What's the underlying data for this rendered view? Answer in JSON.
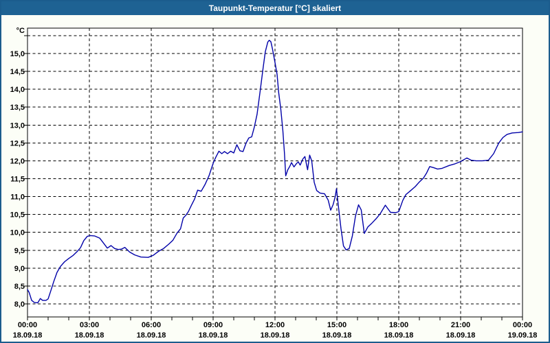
{
  "window": {
    "title": "Taupunkt-Temperatur [°C] skaliert"
  },
  "colors": {
    "titlebar_bg": "#1e6293",
    "titlebar_text": "#ffffff",
    "window_border": "#1b5c8d",
    "window_bg": "#fcfef7",
    "plot_bg": "#ffffff",
    "plot_border": "#000000",
    "grid": "#000000",
    "series_line": "#0000a8",
    "label_text": "#000000"
  },
  "chart_data": {
    "type": "line",
    "title": "Taupunkt-Temperatur [°C] skaliert",
    "ylabel": "°C",
    "xlabel": "",
    "decimal_separator": ",",
    "grid": "dashed",
    "legend": false,
    "y_axis": {
      "min": 8.0,
      "max": 15.5,
      "tick_step": 0.5,
      "ticks": [
        {
          "value": 15.5,
          "label": ""
        },
        {
          "value": 15.0,
          "label": "15,0"
        },
        {
          "value": 14.5,
          "label": "14,5"
        },
        {
          "value": 14.0,
          "label": "14,0"
        },
        {
          "value": 13.5,
          "label": "13,5"
        },
        {
          "value": 13.0,
          "label": "13,0"
        },
        {
          "value": 12.5,
          "label": "12,5"
        },
        {
          "value": 12.0,
          "label": "12,0"
        },
        {
          "value": 11.5,
          "label": "11,5"
        },
        {
          "value": 11.0,
          "label": "11,0"
        },
        {
          "value": 10.5,
          "label": "10,5"
        },
        {
          "value": 10.0,
          "label": "10,0"
        },
        {
          "value": 9.5,
          "label": "9,5"
        },
        {
          "value": 9.0,
          "label": "9,0"
        },
        {
          "value": 8.5,
          "label": "8,5"
        },
        {
          "value": 8.0,
          "label": "8,0"
        }
      ]
    },
    "x_axis": {
      "span_hours": 24,
      "minor_tick_step_hours": 1,
      "major_ticks": [
        {
          "hour": 0,
          "time": "00:00",
          "date": "18.09.18"
        },
        {
          "hour": 3,
          "time": "03:00",
          "date": "18.09.18"
        },
        {
          "hour": 6,
          "time": "06:00",
          "date": "18.09.18"
        },
        {
          "hour": 9,
          "time": "09:00",
          "date": "18.09.18"
        },
        {
          "hour": 12,
          "time": "12:00",
          "date": "18.09.18"
        },
        {
          "hour": 15,
          "time": "15:00",
          "date": "18.09.18"
        },
        {
          "hour": 18,
          "time": "18:00",
          "date": "18.09.18"
        },
        {
          "hour": 21,
          "time": "21:00",
          "date": "18.09.18"
        },
        {
          "hour": 24,
          "time": "00:00",
          "date": "19.09.18"
        }
      ]
    },
    "series": [
      {
        "name": "Taupunkt-Temperatur",
        "color": "#0000a8",
        "points": [
          [
            0.0,
            8.4
          ],
          [
            0.08,
            8.32
          ],
          [
            0.2,
            8.1
          ],
          [
            0.33,
            8.04
          ],
          [
            0.5,
            8.03
          ],
          [
            0.62,
            8.15
          ],
          [
            0.73,
            8.1
          ],
          [
            0.9,
            8.1
          ],
          [
            1.0,
            8.14
          ],
          [
            1.12,
            8.35
          ],
          [
            1.27,
            8.62
          ],
          [
            1.43,
            8.88
          ],
          [
            1.6,
            9.05
          ],
          [
            1.8,
            9.18
          ],
          [
            2.0,
            9.27
          ],
          [
            2.2,
            9.35
          ],
          [
            2.4,
            9.46
          ],
          [
            2.57,
            9.57
          ],
          [
            2.73,
            9.77
          ],
          [
            2.9,
            9.89
          ],
          [
            3.05,
            9.91
          ],
          [
            3.25,
            9.9
          ],
          [
            3.5,
            9.84
          ],
          [
            3.7,
            9.69
          ],
          [
            3.87,
            9.56
          ],
          [
            4.05,
            9.63
          ],
          [
            4.22,
            9.55
          ],
          [
            4.4,
            9.52
          ],
          [
            4.55,
            9.53
          ],
          [
            4.72,
            9.58
          ],
          [
            4.95,
            9.45
          ],
          [
            5.2,
            9.37
          ],
          [
            5.5,
            9.31
          ],
          [
            5.85,
            9.3
          ],
          [
            6.1,
            9.36
          ],
          [
            6.35,
            9.47
          ],
          [
            6.6,
            9.55
          ],
          [
            6.85,
            9.67
          ],
          [
            7.05,
            9.78
          ],
          [
            7.25,
            9.98
          ],
          [
            7.42,
            10.1
          ],
          [
            7.55,
            10.4
          ],
          [
            7.68,
            10.48
          ],
          [
            7.8,
            10.58
          ],
          [
            7.95,
            10.76
          ],
          [
            8.1,
            10.93
          ],
          [
            8.25,
            11.18
          ],
          [
            8.42,
            11.15
          ],
          [
            8.6,
            11.33
          ],
          [
            8.8,
            11.58
          ],
          [
            9.0,
            11.93
          ],
          [
            9.13,
            12.1
          ],
          [
            9.28,
            12.27
          ],
          [
            9.42,
            12.2
          ],
          [
            9.55,
            12.26
          ],
          [
            9.7,
            12.2
          ],
          [
            9.85,
            12.27
          ],
          [
            10.0,
            12.22
          ],
          [
            10.15,
            12.45
          ],
          [
            10.3,
            12.28
          ],
          [
            10.45,
            12.26
          ],
          [
            10.6,
            12.5
          ],
          [
            10.73,
            12.64
          ],
          [
            10.87,
            12.67
          ],
          [
            11.0,
            12.95
          ],
          [
            11.13,
            13.3
          ],
          [
            11.28,
            13.95
          ],
          [
            11.42,
            14.58
          ],
          [
            11.53,
            15.05
          ],
          [
            11.65,
            15.32
          ],
          [
            11.72,
            15.37
          ],
          [
            11.8,
            15.33
          ],
          [
            11.88,
            15.12
          ],
          [
            12.0,
            14.75
          ],
          [
            12.1,
            14.42
          ],
          [
            12.18,
            13.9
          ],
          [
            12.28,
            13.45
          ],
          [
            12.38,
            12.85
          ],
          [
            12.46,
            12.2
          ],
          [
            12.52,
            11.58
          ],
          [
            12.62,
            11.75
          ],
          [
            12.72,
            11.85
          ],
          [
            12.8,
            11.95
          ],
          [
            12.92,
            11.83
          ],
          [
            13.05,
            11.93
          ],
          [
            13.13,
            11.97
          ],
          [
            13.22,
            11.88
          ],
          [
            13.35,
            12.05
          ],
          [
            13.45,
            12.12
          ],
          [
            13.58,
            11.75
          ],
          [
            13.68,
            12.16
          ],
          [
            13.78,
            12.0
          ],
          [
            13.9,
            11.4
          ],
          [
            14.02,
            11.17
          ],
          [
            14.18,
            11.1
          ],
          [
            14.4,
            11.08
          ],
          [
            14.58,
            10.9
          ],
          [
            14.7,
            10.62
          ],
          [
            14.82,
            10.78
          ],
          [
            14.92,
            11.0
          ],
          [
            14.98,
            11.22
          ],
          [
            15.08,
            10.7
          ],
          [
            15.2,
            10.1
          ],
          [
            15.32,
            9.62
          ],
          [
            15.45,
            9.51
          ],
          [
            15.6,
            9.55
          ],
          [
            15.75,
            9.9
          ],
          [
            15.9,
            10.45
          ],
          [
            16.05,
            10.77
          ],
          [
            16.18,
            10.63
          ],
          [
            16.33,
            9.97
          ],
          [
            16.5,
            10.15
          ],
          [
            16.7,
            10.26
          ],
          [
            16.9,
            10.38
          ],
          [
            17.1,
            10.52
          ],
          [
            17.35,
            10.76
          ],
          [
            17.6,
            10.56
          ],
          [
            17.85,
            10.55
          ],
          [
            18.0,
            10.58
          ],
          [
            18.2,
            10.9
          ],
          [
            18.35,
            11.06
          ],
          [
            18.5,
            11.13
          ],
          [
            18.8,
            11.28
          ],
          [
            19.0,
            11.41
          ],
          [
            19.2,
            11.52
          ],
          [
            19.35,
            11.66
          ],
          [
            19.5,
            11.84
          ],
          [
            19.68,
            11.81
          ],
          [
            19.88,
            11.77
          ],
          [
            20.1,
            11.79
          ],
          [
            20.45,
            11.87
          ],
          [
            20.7,
            11.91
          ],
          [
            21.0,
            11.98
          ],
          [
            21.3,
            12.08
          ],
          [
            21.5,
            12.02
          ],
          [
            21.75,
            12.0
          ],
          [
            22.05,
            12.0
          ],
          [
            22.35,
            12.02
          ],
          [
            22.6,
            12.2
          ],
          [
            22.85,
            12.5
          ],
          [
            23.05,
            12.65
          ],
          [
            23.25,
            12.74
          ],
          [
            23.5,
            12.78
          ],
          [
            23.8,
            12.79
          ],
          [
            24.0,
            12.81
          ]
        ]
      }
    ]
  }
}
